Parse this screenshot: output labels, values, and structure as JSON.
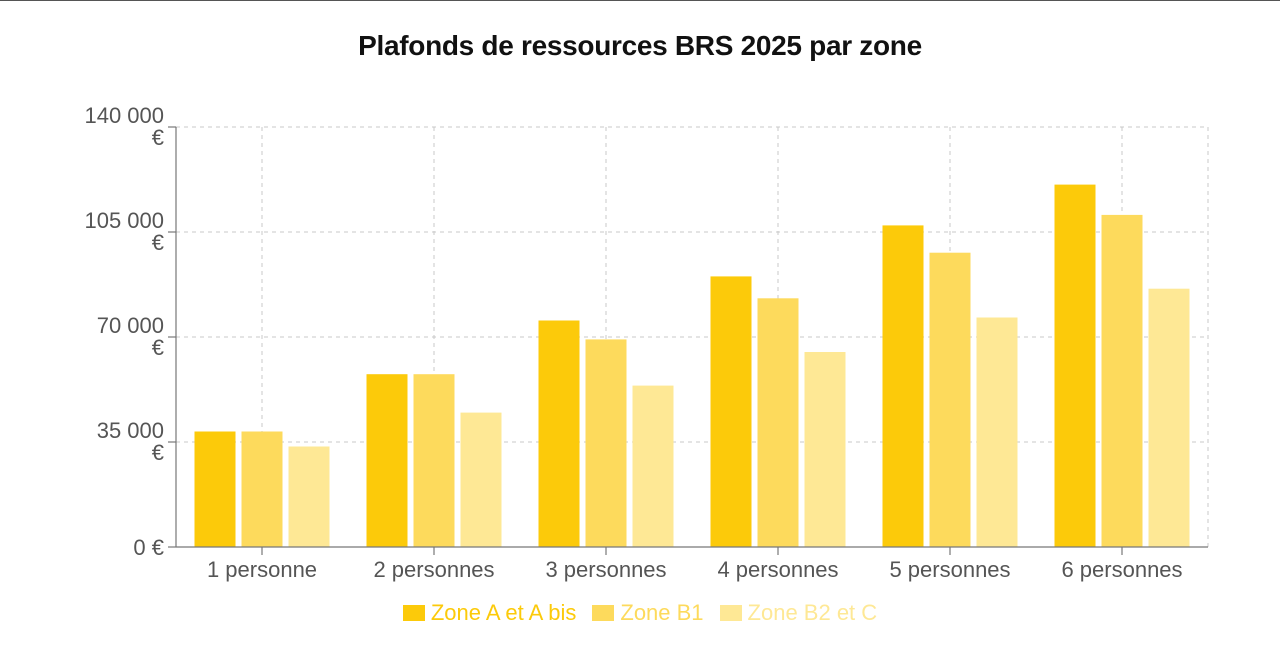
{
  "chart_data": {
    "type": "bar",
    "title": "Plafonds de ressources BRS 2025 par zone",
    "categories": [
      "1 personne",
      "2 personnes",
      "3 personnes",
      "4 personnes",
      "5 personnes",
      "6 personnes"
    ],
    "series": [
      {
        "name": "Zone A et A bis",
        "color": "#FCCA0A",
        "values": [
          38500,
          57600,
          75500,
          90200,
          107200,
          120800
        ]
      },
      {
        "name": "Zone B1",
        "color": "#FDDA5C",
        "values": [
          38500,
          57600,
          69200,
          82900,
          98100,
          110700
        ]
      },
      {
        "name": "Zone B2 et C",
        "color": "#FEE895",
        "values": [
          33500,
          44800,
          53800,
          65000,
          76500,
          86100
        ]
      }
    ],
    "yticks": [
      {
        "value": 0,
        "label": [
          "0 €"
        ]
      },
      {
        "value": 35000,
        "label": [
          "35 000",
          "€"
        ]
      },
      {
        "value": 70000,
        "label": [
          "70 000",
          "€"
        ]
      },
      {
        "value": 105000,
        "label": [
          "105 000",
          "€"
        ]
      },
      {
        "value": 140000,
        "label": [
          "140 000",
          "€"
        ]
      }
    ],
    "ylim": [
      0,
      140000
    ],
    "grid": true,
    "legend_position": "bottom"
  }
}
